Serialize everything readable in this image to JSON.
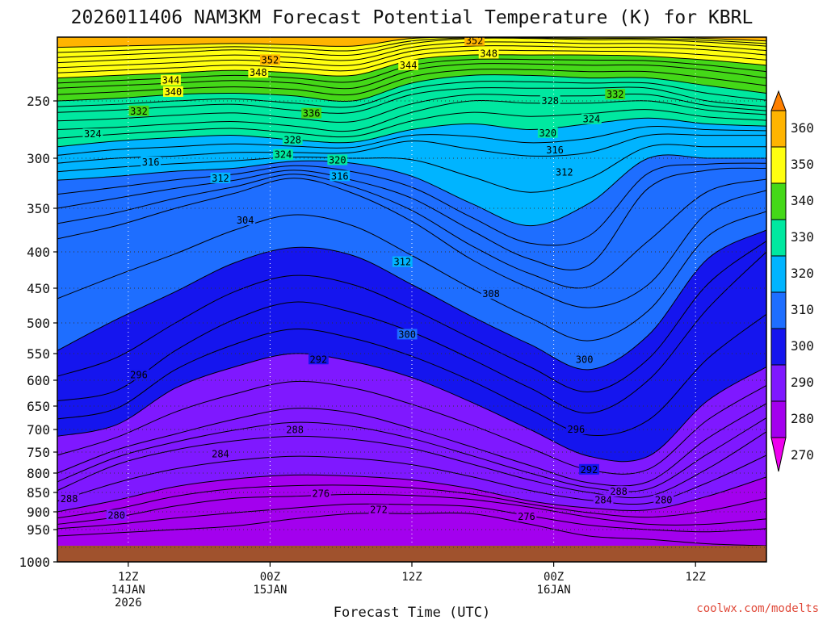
{
  "chart_data": {
    "type": "heatmap",
    "title": "2026011406 NAM3KM Forecast Potential Temperature (K) for KBRL",
    "xlabel": "Forecast Time (UTC)",
    "ylabel": "",
    "watermark": "coolwx.com/modelts",
    "y_axis": {
      "type": "pressure",
      "units": "hPa",
      "range": [
        200,
        1000
      ],
      "ticks": [
        250,
        300,
        350,
        400,
        450,
        500,
        550,
        600,
        650,
        700,
        750,
        800,
        850,
        900,
        950,
        1000
      ]
    },
    "x_axis": {
      "units": "forecast hour",
      "range": [
        0,
        60
      ],
      "ticks": [
        {
          "hour": 6,
          "lines": [
            "12Z",
            "14JAN",
            "2026"
          ]
        },
        {
          "hour": 18,
          "lines": [
            "00Z",
            "15JAN"
          ]
        },
        {
          "hour": 30,
          "lines": [
            "12Z"
          ]
        },
        {
          "hour": 42,
          "lines": [
            "00Z",
            "16JAN"
          ]
        },
        {
          "hour": 54,
          "lines": [
            "12Z"
          ]
        }
      ]
    },
    "colorbar": {
      "units": "K",
      "levels": [
        270,
        280,
        290,
        300,
        310,
        320,
        330,
        340,
        350,
        360
      ],
      "colors": [
        "#ee00ee",
        "#a300ee",
        "#7f18ff",
        "#1515ee",
        "#1e6eff",
        "#00b4ff",
        "#00e8a0",
        "#44d818",
        "#ffff10",
        "#ffb400",
        "#ff8000"
      ]
    },
    "contour_interval": 2,
    "ground_color": "#a0522d",
    "surface_pressure": 975,
    "level_profiles": [
      {
        "theta": 270,
        "p": [
          999,
          999,
          999,
          999,
          999,
          999,
          999,
          999,
          999,
          999,
          999,
          999,
          999
        ]
      },
      {
        "theta": 272,
        "p": [
          960,
          955,
          950,
          940,
          920,
          905,
          905,
          905,
          935,
          960,
          965,
          972,
          975
        ]
      },
      {
        "theta": 276,
        "p": [
          935,
          915,
          885,
          865,
          860,
          855,
          858,
          868,
          888,
          915,
          935,
          935,
          920
        ]
      },
      {
        "theta": 280,
        "p": [
          900,
          870,
          835,
          815,
          805,
          808,
          818,
          840,
          872,
          890,
          895,
          860,
          810
        ]
      },
      {
        "theta": 284,
        "p": [
          845,
          780,
          745,
          725,
          715,
          722,
          742,
          778,
          818,
          850,
          860,
          790,
          705
        ]
      },
      {
        "theta": 288,
        "p": [
          800,
          745,
          710,
          678,
          655,
          665,
          698,
          738,
          782,
          825,
          822,
          720,
          645
        ]
      },
      {
        "theta": 292,
        "p": [
          715,
          690,
          615,
          575,
          550,
          565,
          595,
          642,
          700,
          760,
          760,
          640,
          575
        ]
      },
      {
        "theta": 296,
        "p": [
          640,
          620,
          545,
          495,
          470,
          485,
          515,
          560,
          615,
          665,
          600,
          480,
          400
        ]
      },
      {
        "theta": 300,
        "p": [
          545,
          495,
          455,
          415,
          395,
          405,
          445,
          490,
          535,
          580,
          520,
          410,
          375
        ]
      },
      {
        "theta": 304,
        "p": [
          385,
          370,
          350,
          335,
          320,
          335,
          365,
          410,
          450,
          478,
          445,
          355,
          332
        ]
      },
      {
        "theta": 308,
        "p": [
          350,
          340,
          330,
          322,
          312,
          322,
          340,
          375,
          410,
          418,
          330,
          312,
          310
        ]
      },
      {
        "theta": 312,
        "p": [
          322,
          318,
          313,
          310,
          303,
          305,
          318,
          345,
          370,
          345,
          300,
          300,
          300
        ]
      },
      {
        "theta": 316,
        "p": [
          305,
          300,
          298,
          295,
          295,
          295,
          285,
          292,
          298,
          295,
          280,
          280,
          280
        ]
      },
      {
        "theta": 320,
        "p": [
          290,
          285,
          282,
          280,
          284,
          286,
          275,
          270,
          275,
          270,
          265,
          270,
          272
        ]
      },
      {
        "theta": 324,
        "p": [
          275,
          273,
          270,
          268,
          272,
          276,
          260,
          250,
          252,
          252,
          250,
          258,
          262
        ]
      },
      {
        "theta": 328,
        "p": [
          260,
          258,
          255,
          253,
          258,
          260,
          245,
          240,
          240,
          240,
          240,
          250,
          255
        ]
      },
      {
        "theta": 332,
        "p": [
          250,
          248,
          245,
          244,
          246,
          250,
          236,
          230,
          230,
          232,
          232,
          238,
          244
        ]
      },
      {
        "theta": 336,
        "p": [
          240,
          238,
          236,
          234,
          236,
          240,
          226,
          221,
          221,
          222,
          222,
          226,
          232
        ]
      },
      {
        "theta": 340,
        "p": [
          232,
          230,
          228,
          226,
          228,
          230,
          218,
          214,
          214,
          214,
          215,
          218,
          222
        ]
      },
      {
        "theta": 344,
        "p": [
          224,
          222,
          220,
          218,
          220,
          222,
          211,
          207,
          207,
          208,
          208,
          210,
          214
        ]
      },
      {
        "theta": 348,
        "p": [
          216,
          214,
          212,
          210,
          212,
          214,
          205,
          201,
          201,
          202,
          202,
          204,
          207
        ]
      },
      {
        "theta": 352,
        "p": [
          208,
          207,
          206,
          205,
          206,
          207,
          201,
          200,
          200,
          200,
          200,
          201,
          203
        ]
      }
    ],
    "profile_hours": [
      0,
      5,
      10,
      15,
      20,
      25,
      30,
      35,
      40,
      45,
      50,
      55,
      60
    ],
    "contour_labels": [
      {
        "text": "352",
        "hour": 35.3,
        "p": 203
      },
      {
        "text": "352",
        "hour": 18.0,
        "p": 218
      },
      {
        "text": "348",
        "hour": 36.5,
        "p": 213
      },
      {
        "text": "348",
        "hour": 17.0,
        "p": 228
      },
      {
        "text": "344",
        "hour": 29.7,
        "p": 222
      },
      {
        "text": "344",
        "hour": 9.6,
        "p": 234
      },
      {
        "text": "340",
        "hour": 9.8,
        "p": 243
      },
      {
        "text": "336",
        "hour": 21.5,
        "p": 261
      },
      {
        "text": "332",
        "hour": 6.9,
        "p": 259
      },
      {
        "text": "332",
        "hour": 47.2,
        "p": 245
      },
      {
        "text": "328",
        "hour": 41.7,
        "p": 250
      },
      {
        "text": "328",
        "hour": 19.9,
        "p": 284
      },
      {
        "text": "324",
        "hour": 3.0,
        "p": 279
      },
      {
        "text": "324",
        "hour": 45.2,
        "p": 266
      },
      {
        "text": "324",
        "hour": 19.1,
        "p": 297
      },
      {
        "text": "320",
        "hour": 41.5,
        "p": 278
      },
      {
        "text": "320",
        "hour": 23.7,
        "p": 302
      },
      {
        "text": "316",
        "hour": 42.1,
        "p": 293
      },
      {
        "text": "316",
        "hour": 7.9,
        "p": 304
      },
      {
        "text": "316",
        "hour": 23.9,
        "p": 318
      },
      {
        "text": "312",
        "hour": 42.9,
        "p": 314
      },
      {
        "text": "312",
        "hour": 13.8,
        "p": 320
      },
      {
        "text": "312",
        "hour": 29.2,
        "p": 414
      },
      {
        "text": "308",
        "hour": 36.7,
        "p": 458
      },
      {
        "text": "304",
        "hour": 15.9,
        "p": 364
      },
      {
        "text": "300",
        "hour": 29.6,
        "p": 519
      },
      {
        "text": "300",
        "hour": 44.6,
        "p": 561
      },
      {
        "text": "296",
        "hour": 6.9,
        "p": 590
      },
      {
        "text": "296",
        "hour": 43.9,
        "p": 700
      },
      {
        "text": "292",
        "hour": 22.1,
        "p": 561
      },
      {
        "text": "292",
        "hour": 45.0,
        "p": 792
      },
      {
        "text": "288",
        "hour": 20.1,
        "p": 701
      },
      {
        "text": "288",
        "hour": 1.0,
        "p": 867
      },
      {
        "text": "288",
        "hour": 47.5,
        "p": 848
      },
      {
        "text": "284",
        "hour": 13.8,
        "p": 755
      },
      {
        "text": "284",
        "hour": 46.2,
        "p": 870
      },
      {
        "text": "280",
        "hour": 5.0,
        "p": 910
      },
      {
        "text": "280",
        "hour": 51.3,
        "p": 870
      },
      {
        "text": "276",
        "hour": 22.3,
        "p": 853
      },
      {
        "text": "276",
        "hour": 39.7,
        "p": 914
      },
      {
        "text": "272",
        "hour": 27.2,
        "p": 895
      }
    ]
  }
}
